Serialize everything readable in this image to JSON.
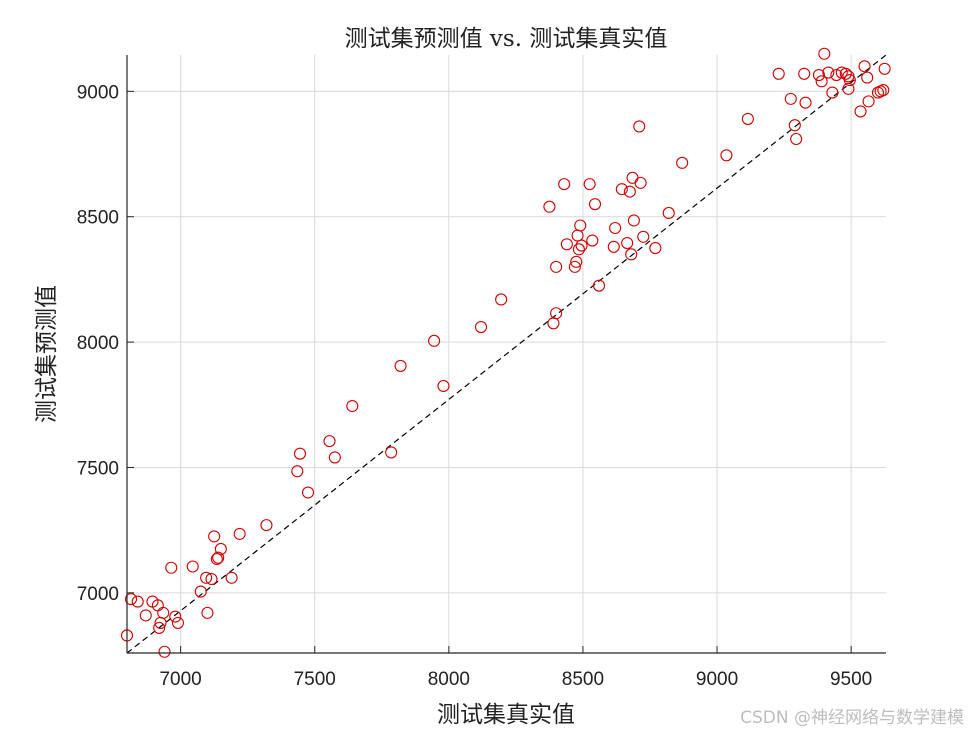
{
  "watermark": "CSDN @神经网络与数学建模",
  "chart_data": {
    "type": "scatter",
    "title": "测试集预测值 vs. 测试集真实值",
    "xlabel": "测试集真实值",
    "ylabel": "测试集预测值",
    "xlim": [
      6800,
      9630
    ],
    "ylim": [
      6760,
      9145
    ],
    "xticks": [
      7000,
      7500,
      8000,
      8500,
      9000,
      9500
    ],
    "yticks": [
      7000,
      7500,
      8000,
      8500,
      9000
    ],
    "grid": true,
    "marker": "open circle",
    "colors": {
      "points": "#d40000",
      "reference_line": "#000000",
      "grid": "#d9d9d9",
      "axes": "#262626"
    },
    "reference_line": {
      "style": "dashed",
      "from": [
        6800,
        6760
      ],
      "to": [
        9630,
        9145
      ]
    },
    "points": [
      [
        6800,
        6830
      ],
      [
        6815,
        6975
      ],
      [
        6840,
        6965
      ],
      [
        6870,
        6910
      ],
      [
        6895,
        6965
      ],
      [
        6915,
        6950
      ],
      [
        6920,
        6860
      ],
      [
        6925,
        6880
      ],
      [
        6935,
        6920
      ],
      [
        6940,
        6765
      ],
      [
        6965,
        7100
      ],
      [
        6980,
        6905
      ],
      [
        6990,
        6880
      ],
      [
        7045,
        7105
      ],
      [
        7075,
        7005
      ],
      [
        7095,
        7060
      ],
      [
        7100,
        6920
      ],
      [
        7115,
        7055
      ],
      [
        7125,
        7225
      ],
      [
        7135,
        7135
      ],
      [
        7140,
        7140
      ],
      [
        7150,
        7175
      ],
      [
        7190,
        7060
      ],
      [
        7220,
        7235
      ],
      [
        7320,
        7270
      ],
      [
        7435,
        7485
      ],
      [
        7445,
        7555
      ],
      [
        7475,
        7400
      ],
      [
        7555,
        7605
      ],
      [
        7575,
        7540
      ],
      [
        7640,
        7745
      ],
      [
        7785,
        7560
      ],
      [
        7820,
        7905
      ],
      [
        7945,
        8005
      ],
      [
        7980,
        7825
      ],
      [
        8120,
        8060
      ],
      [
        8195,
        8170
      ],
      [
        8375,
        8540
      ],
      [
        8390,
        8075
      ],
      [
        8400,
        8300
      ],
      [
        8400,
        8115
      ],
      [
        8430,
        8630
      ],
      [
        8440,
        8390
      ],
      [
        8470,
        8300
      ],
      [
        8475,
        8320
      ],
      [
        8480,
        8425
      ],
      [
        8485,
        8370
      ],
      [
        8490,
        8465
      ],
      [
        8495,
        8385
      ],
      [
        8525,
        8630
      ],
      [
        8535,
        8405
      ],
      [
        8545,
        8550
      ],
      [
        8560,
        8225
      ],
      [
        8615,
        8380
      ],
      [
        8620,
        8455
      ],
      [
        8645,
        8610
      ],
      [
        8665,
        8395
      ],
      [
        8675,
        8600
      ],
      [
        8680,
        8350
      ],
      [
        8685,
        8655
      ],
      [
        8690,
        8485
      ],
      [
        8710,
        8860
      ],
      [
        8715,
        8635
      ],
      [
        8725,
        8420
      ],
      [
        8770,
        8375
      ],
      [
        8820,
        8515
      ],
      [
        8870,
        8715
      ],
      [
        9035,
        8745
      ],
      [
        9115,
        8890
      ],
      [
        9230,
        9070
      ],
      [
        9275,
        8970
      ],
      [
        9290,
        8865
      ],
      [
        9295,
        8810
      ],
      [
        9325,
        9070
      ],
      [
        9330,
        8955
      ],
      [
        9380,
        9065
      ],
      [
        9390,
        9040
      ],
      [
        9400,
        9150
      ],
      [
        9415,
        9075
      ],
      [
        9430,
        8995
      ],
      [
        9445,
        9065
      ],
      [
        9465,
        9075
      ],
      [
        9480,
        9070
      ],
      [
        9490,
        9060
      ],
      [
        9490,
        9010
      ],
      [
        9495,
        9045
      ],
      [
        9535,
        8920
      ],
      [
        9550,
        9100
      ],
      [
        9560,
        9055
      ],
      [
        9565,
        8960
      ],
      [
        9600,
        8995
      ],
      [
        9610,
        9000
      ],
      [
        9620,
        9005
      ],
      [
        9625,
        9090
      ]
    ]
  }
}
